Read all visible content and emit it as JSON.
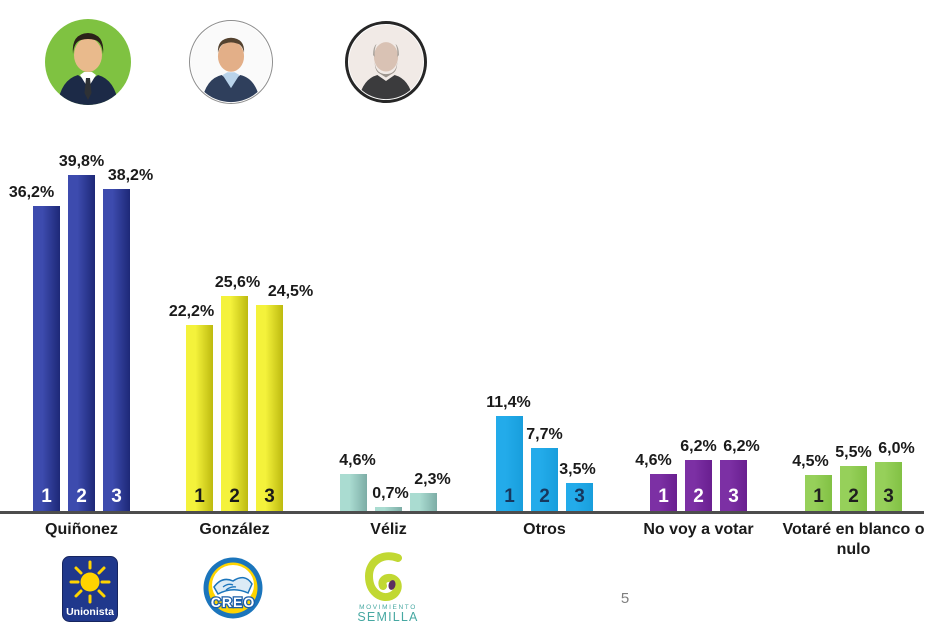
{
  "slide": {
    "page_number": "5"
  },
  "candidates": [
    {
      "name": "Quiñonez",
      "party": "Unionista"
    },
    {
      "name": "González",
      "party": "CREO"
    },
    {
      "name": "Véliz",
      "party": "Movimiento Semilla"
    }
  ],
  "chart_data": {
    "type": "bar",
    "unit": "%",
    "series_labels": [
      "1",
      "2",
      "3"
    ],
    "ylim": [
      0,
      42
    ],
    "grid": false,
    "legend": "none",
    "axis_color": "#4D4D4D",
    "value_label_color": "#1A1A1A",
    "categories": [
      "Quiñonez",
      "González",
      "Véliz",
      "Otros",
      "No voy a votar",
      "Votaré en blanco o nulo"
    ],
    "groups": [
      {
        "category": "Quiñonez",
        "values": [
          36.2,
          39.8,
          38.2
        ],
        "value_labels": [
          "36,2%",
          "39,8%",
          "38,2%"
        ],
        "bar_color_light": "#3D4BAE",
        "bar_color_dark": "#1D2877",
        "series_number_color": "#FFFFFF",
        "show_series_numbers": true
      },
      {
        "category": "González",
        "values": [
          22.2,
          25.6,
          24.5
        ],
        "value_labels": [
          "22,2%",
          "25,6%",
          "24,5%"
        ],
        "bar_color_light": "#F4F23B",
        "bar_color_dark": "#BDBA0F",
        "series_number_color": "#1A1A1A",
        "show_series_numbers": true
      },
      {
        "category": "Véliz",
        "values": [
          4.6,
          0.7,
          2.3
        ],
        "value_labels": [
          "4,6%",
          "0,7%",
          "2,3%"
        ],
        "bar_color_light": "#AADCD1",
        "bar_color_dark": "#7DADA6",
        "series_number_color": "#1A1A1A",
        "show_series_numbers": false
      },
      {
        "category": "Otros",
        "values": [
          11.4,
          7.7,
          3.5
        ],
        "value_labels": [
          "11,4%",
          "7,7%",
          "3,5%"
        ],
        "bar_color_light": "#23ABEA",
        "bar_color_dark": "#189EDC",
        "series_number_color": "#17375E",
        "show_series_numbers": true
      },
      {
        "category": "No voy a votar",
        "values": [
          4.6,
          6.2,
          6.2
        ],
        "value_labels": [
          "4,6%",
          "6,2%",
          "6,2%"
        ],
        "bar_color_light": "#7C30A4",
        "bar_color_dark": "#691F90",
        "series_number_color": "#FFFFFF",
        "show_series_numbers": true
      },
      {
        "category": "Votaré en blanco o nulo",
        "values": [
          4.5,
          5.5,
          6.0
        ],
        "value_labels": [
          "4,5%",
          "5,5%",
          "6,0%"
        ],
        "bar_color_light": "#96D05A",
        "bar_color_dark": "#82C144",
        "series_number_color": "#1F1F1F",
        "show_series_numbers": true
      }
    ]
  },
  "logos": {
    "unionista": {
      "name": "Unionista",
      "bg_color": "#20388C",
      "sun_color": "#FFD400",
      "text": "Unionista"
    },
    "creo": {
      "name": "CREO",
      "outer_color": "#1B75BC",
      "ring_color": "#FFD400",
      "text": "CREO"
    },
    "semilla": {
      "name": "Movimiento Semilla",
      "spiral_color": "#C1D832",
      "seed_color": "#5C2D5F",
      "text_color": "#47A8A2",
      "text_top": "MOVIMIENTO",
      "text_bottom": "SEMILLA"
    }
  }
}
